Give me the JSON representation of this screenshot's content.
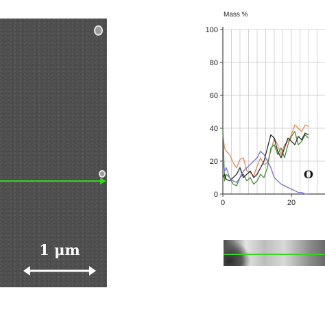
{
  "sem_image": {
    "scale_bar_label": "1 μm",
    "scan_line_color": "#35d420"
  },
  "element_label": "O",
  "chart_data": {
    "type": "line",
    "ylabel": "Mass %",
    "xlabel": "",
    "ylim": [
      0,
      100
    ],
    "xlim": [
      0,
      30
    ],
    "yticks": [
      0,
      20,
      40,
      60,
      80,
      100
    ],
    "xticks": [
      0,
      20
    ],
    "grid": true,
    "x": [
      0,
      0.5,
      1,
      2,
      3,
      4,
      5,
      6,
      7,
      8,
      9,
      10,
      11,
      12,
      13,
      14,
      15,
      16,
      17,
      18,
      19,
      20,
      21,
      22,
      23,
      24,
      25
    ],
    "series": [
      {
        "color": "#e08a5a",
        "values": [
          36,
          28,
          26,
          24,
          19,
          16,
          21,
          22,
          14,
          13,
          11,
          17,
          22,
          18,
          19,
          26,
          34,
          30,
          24,
          30,
          32,
          36,
          42,
          40,
          38,
          42,
          41
        ]
      },
      {
        "color": "#4a8a3a",
        "values": [
          41,
          8,
          12,
          10,
          6,
          5,
          10,
          12,
          8,
          10,
          6,
          8,
          12,
          10,
          16,
          28,
          30,
          24,
          28,
          22,
          30,
          35,
          38,
          30,
          32,
          36,
          34
        ]
      },
      {
        "color": "#2a2a2a",
        "values": [
          10,
          12,
          9,
          8,
          10,
          12,
          16,
          10,
          12,
          14,
          10,
          12,
          16,
          20,
          28,
          36,
          34,
          26,
          22,
          28,
          34,
          32,
          30,
          35,
          33,
          37,
          36
        ]
      },
      {
        "color": "#6f6fd8",
        "values": [
          20,
          14,
          16,
          10,
          8,
          7,
          10,
          14,
          16,
          18,
          20,
          22,
          26,
          24,
          20,
          16,
          10,
          8,
          6,
          5,
          4,
          3,
          2,
          1,
          1,
          0,
          0
        ]
      }
    ]
  }
}
